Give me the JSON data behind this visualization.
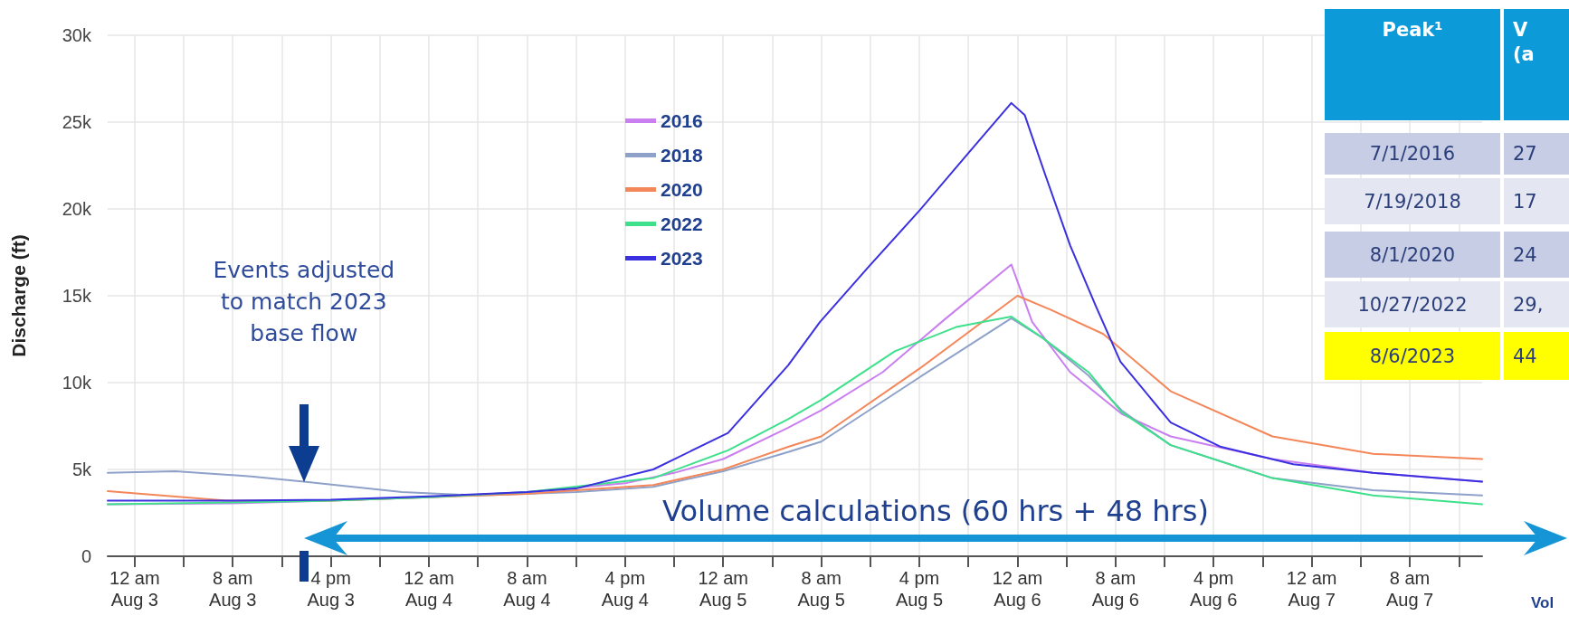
{
  "chart_data": [
    {
      "type": "line",
      "ylabel": "Discharge (ft)",
      "xlim": [
        "2023-08-02T21:48",
        "2023-08-07T13:54"
      ],
      "xticks": [
        {
          "value": "2023-08-03T00:00",
          "label": "12 am\nAug 3"
        },
        {
          "value": "2023-08-03T04:00",
          "label": null
        },
        {
          "value": "2023-08-03T08:00",
          "label": "8 am\nAug 3"
        },
        {
          "value": "2023-08-03T12:00",
          "label": null
        },
        {
          "value": "2023-08-03T16:00",
          "label": "4 pm\nAug 3"
        },
        {
          "value": "2023-08-03T20:00",
          "label": null
        },
        {
          "value": "2023-08-04T00:00",
          "label": "12 am\nAug 4"
        },
        {
          "value": "2023-08-04T04:00",
          "label": null
        },
        {
          "value": "2023-08-04T08:00",
          "label": "8 am\nAug 4"
        },
        {
          "value": "2023-08-04T12:00",
          "label": null
        },
        {
          "value": "2023-08-04T16:00",
          "label": "4 pm\nAug 4"
        },
        {
          "value": "2023-08-04T20:00",
          "label": null
        },
        {
          "value": "2023-08-05T00:00",
          "label": "12 am\nAug 5"
        },
        {
          "value": "2023-08-05T04:00",
          "label": null
        },
        {
          "value": "2023-08-05T08:00",
          "label": "8 am\nAug 5"
        },
        {
          "value": "2023-08-05T12:00",
          "label": null
        },
        {
          "value": "2023-08-05T16:00",
          "label": "4 pm\nAug 5"
        },
        {
          "value": "2023-08-05T20:00",
          "label": null
        },
        {
          "value": "2023-08-06T00:00",
          "label": "12 am\nAug 6"
        },
        {
          "value": "2023-08-06T04:00",
          "label": null
        },
        {
          "value": "2023-08-06T08:00",
          "label": "8 am\nAug 6"
        },
        {
          "value": "2023-08-06T12:00",
          "label": null
        },
        {
          "value": "2023-08-06T16:00",
          "label": "4 pm\nAug 6"
        },
        {
          "value": "2023-08-06T20:00",
          "label": null
        },
        {
          "value": "2023-08-07T00:00",
          "label": "12 am\nAug 7"
        },
        {
          "value": "2023-08-07T04:00",
          "label": null
        },
        {
          "value": "2023-08-07T08:00",
          "label": "8 am\nAug 7"
        },
        {
          "value": "2023-08-07T12:00",
          "label": null
        }
      ],
      "ylim": [
        0,
        30000
      ],
      "yticks": [
        0,
        {
          "value": 5000,
          "label": "5k"
        },
        {
          "value": 10000,
          "label": "10k"
        },
        {
          "value": 15000,
          "label": "15k"
        },
        {
          "value": 20000,
          "label": "20k"
        },
        {
          "value": 25000,
          "label": "25k"
        },
        {
          "value": 30000,
          "label": "30k"
        }
      ],
      "grid": true,
      "legend": "top",
      "marker": "none",
      "line_style": "solid",
      "annotations": [
        "Events adjusted\nto match 2023\nbase flow",
        "Volume calculations (60 hrs + 48 hrs)",
        "Vol"
      ],
      "series": [
        {
          "name": "2016",
          "color": "#c97ff0",
          "x": [
            "2023-08-02T21:48",
            "2023-08-03T08:00",
            "2023-08-03T16:00",
            "2023-08-04T00:00",
            "2023-08-04T08:00",
            "2023-08-04T16:00",
            "2023-08-04T20:00",
            "2023-08-05T00:00",
            "2023-08-05T05:18",
            "2023-08-05T08:00",
            "2023-08-05T13:00",
            "2023-08-05T18:00",
            "2023-08-05T23:30",
            "2023-08-06T01:12",
            "2023-08-06T04:18",
            "2023-08-06T08:30",
            "2023-08-06T12:30",
            "2023-08-06T20:48",
            "2023-08-07T05:00",
            "2023-08-07T13:54"
          ],
          "values": [
            3000,
            3050,
            3200,
            3400,
            3700,
            4200,
            4800,
            5600,
            7400,
            8400,
            10600,
            13600,
            16800,
            13500,
            10600,
            8200,
            6900,
            5600,
            4800,
            4300
          ]
        },
        {
          "name": "2018",
          "color": "#8ea1c9",
          "x": [
            "2023-08-02T21:48",
            "2023-08-03T03:18",
            "2023-08-03T09:30",
            "2023-08-03T13:48",
            "2023-08-03T21:48",
            "2023-08-04T04:00",
            "2023-08-04T12:00",
            "2023-08-04T18:18",
            "2023-08-05T00:00",
            "2023-08-05T05:18",
            "2023-08-05T08:00",
            "2023-08-05T16:00",
            "2023-08-05T23:30",
            "2023-08-06T02:00",
            "2023-08-06T05:48",
            "2023-08-06T08:30",
            "2023-08-06T12:30",
            "2023-08-06T20:48",
            "2023-08-07T05:00",
            "2023-08-07T13:54"
          ],
          "values": [
            4800,
            4900,
            4600,
            4300,
            3700,
            3500,
            3700,
            4000,
            4900,
            6000,
            6600,
            10300,
            13700,
            12600,
            10400,
            8400,
            6400,
            4500,
            3800,
            3500
          ]
        },
        {
          "name": "2020",
          "color": "#f4875a",
          "x": [
            "2023-08-02T21:48",
            "2023-08-03T07:30",
            "2023-08-03T16:00",
            "2023-08-04T00:00",
            "2023-08-04T08:00",
            "2023-08-04T12:00",
            "2023-08-04T18:18",
            "2023-08-05T00:00",
            "2023-08-05T05:18",
            "2023-08-05T08:00",
            "2023-08-05T16:00",
            "2023-08-06T00:00",
            "2023-08-06T02:42",
            "2023-08-06T07:00",
            "2023-08-06T12:30",
            "2023-08-06T20:48",
            "2023-08-07T05:00",
            "2023-08-07T13:54"
          ],
          "values": [
            3750,
            3200,
            3200,
            3400,
            3600,
            3800,
            4100,
            5000,
            6300,
            6900,
            10800,
            15000,
            14200,
            12800,
            9500,
            6900,
            5900,
            5600
          ]
        },
        {
          "name": "2022",
          "color": "#3fe08c",
          "x": [
            "2023-08-02T21:48",
            "2023-08-03T08:00",
            "2023-08-03T16:00",
            "2023-08-04T00:00",
            "2023-08-04T08:00",
            "2023-08-04T18:18",
            "2023-08-05T00:24",
            "2023-08-05T05:18",
            "2023-08-05T08:00",
            "2023-08-05T14:00",
            "2023-08-05T19:00",
            "2023-08-05T23:30",
            "2023-08-06T02:00",
            "2023-08-06T05:48",
            "2023-08-06T08:30",
            "2023-08-06T12:30",
            "2023-08-06T20:48",
            "2023-08-07T05:00",
            "2023-08-07T13:54"
          ],
          "values": [
            3000,
            3100,
            3200,
            3400,
            3700,
            4500,
            6100,
            7900,
            9000,
            11800,
            13200,
            13800,
            12600,
            10600,
            8300,
            6400,
            4500,
            3500,
            3000
          ]
        },
        {
          "name": "2023",
          "color": "#3b30e0",
          "x": [
            "2023-08-02T21:48",
            "2023-08-03T08:00",
            "2023-08-03T16:00",
            "2023-08-04T00:00",
            "2023-08-04T08:00",
            "2023-08-04T12:00",
            "2023-08-04T18:18",
            "2023-08-05T00:24",
            "2023-08-05T05:18",
            "2023-08-05T07:54",
            "2023-08-05T11:54",
            "2023-08-05T16:00",
            "2023-08-05T20:06",
            "2023-08-05T23:30",
            "2023-08-06T00:36",
            "2023-08-06T02:18",
            "2023-08-06T04:18",
            "2023-08-06T06:24",
            "2023-08-06T08:24",
            "2023-08-06T12:30",
            "2023-08-06T16:36",
            "2023-08-06T22:30",
            "2023-08-07T05:00",
            "2023-08-07T13:54"
          ],
          "values": [
            3200,
            3200,
            3250,
            3450,
            3700,
            3900,
            5000,
            7100,
            11000,
            13500,
            16700,
            19900,
            23300,
            26100,
            25400,
            21900,
            17900,
            14400,
            11200,
            7700,
            6300,
            5300,
            4800,
            4300
          ]
        }
      ]
    },
    {
      "type": "other",
      "annotations": [
        "Peak¹",
        "V\n(a",
        "7/1/2016",
        "27",
        "7/19/2018",
        "17",
        "8/1/2020",
        "24",
        "10/27/2022",
        "29,",
        "8/6/2023",
        "44"
      ]
    }
  ]
}
